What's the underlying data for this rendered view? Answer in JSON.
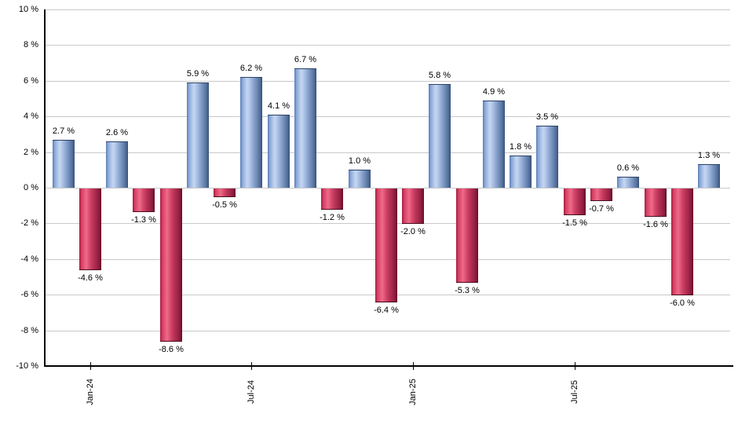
{
  "chart_data": {
    "type": "bar",
    "title": "",
    "xlabel": "",
    "ylabel": "",
    "ylim": [
      -10,
      10
    ],
    "grid": true,
    "legend": null,
    "y_ticks": [
      10,
      8,
      6,
      4,
      2,
      0,
      -2,
      -4,
      -6,
      -8,
      -10
    ],
    "y_tick_suffix": " %",
    "value_label_suffix": " %",
    "x_ticks": [
      {
        "index": 1,
        "label": "Jan-24"
      },
      {
        "index": 7,
        "label": "Jul-24"
      },
      {
        "index": 13,
        "label": "Jan-25"
      },
      {
        "index": 19,
        "label": "Jul-25"
      }
    ],
    "values": [
      2.7,
      -4.6,
      2.6,
      -1.3,
      -8.6,
      5.9,
      -0.5,
      6.2,
      4.1,
      6.7,
      -1.2,
      1.0,
      -6.4,
      -2.0,
      5.8,
      -5.3,
      4.9,
      1.8,
      3.5,
      -1.5,
      -0.7,
      0.6,
      -1.6,
      -6.0,
      1.3
    ],
    "colors": {
      "positive_bar": "#7b9dd4",
      "positive_highlight": "#c4d5f0",
      "positive_dark": "#3a5076",
      "negative_bar": "#d04368",
      "negative_highlight": "#ee6a88",
      "negative_dark": "#650e29",
      "gridline": "#c9c9c9",
      "axis": "#000000",
      "text": "#000000",
      "background": "#ffffff"
    }
  }
}
